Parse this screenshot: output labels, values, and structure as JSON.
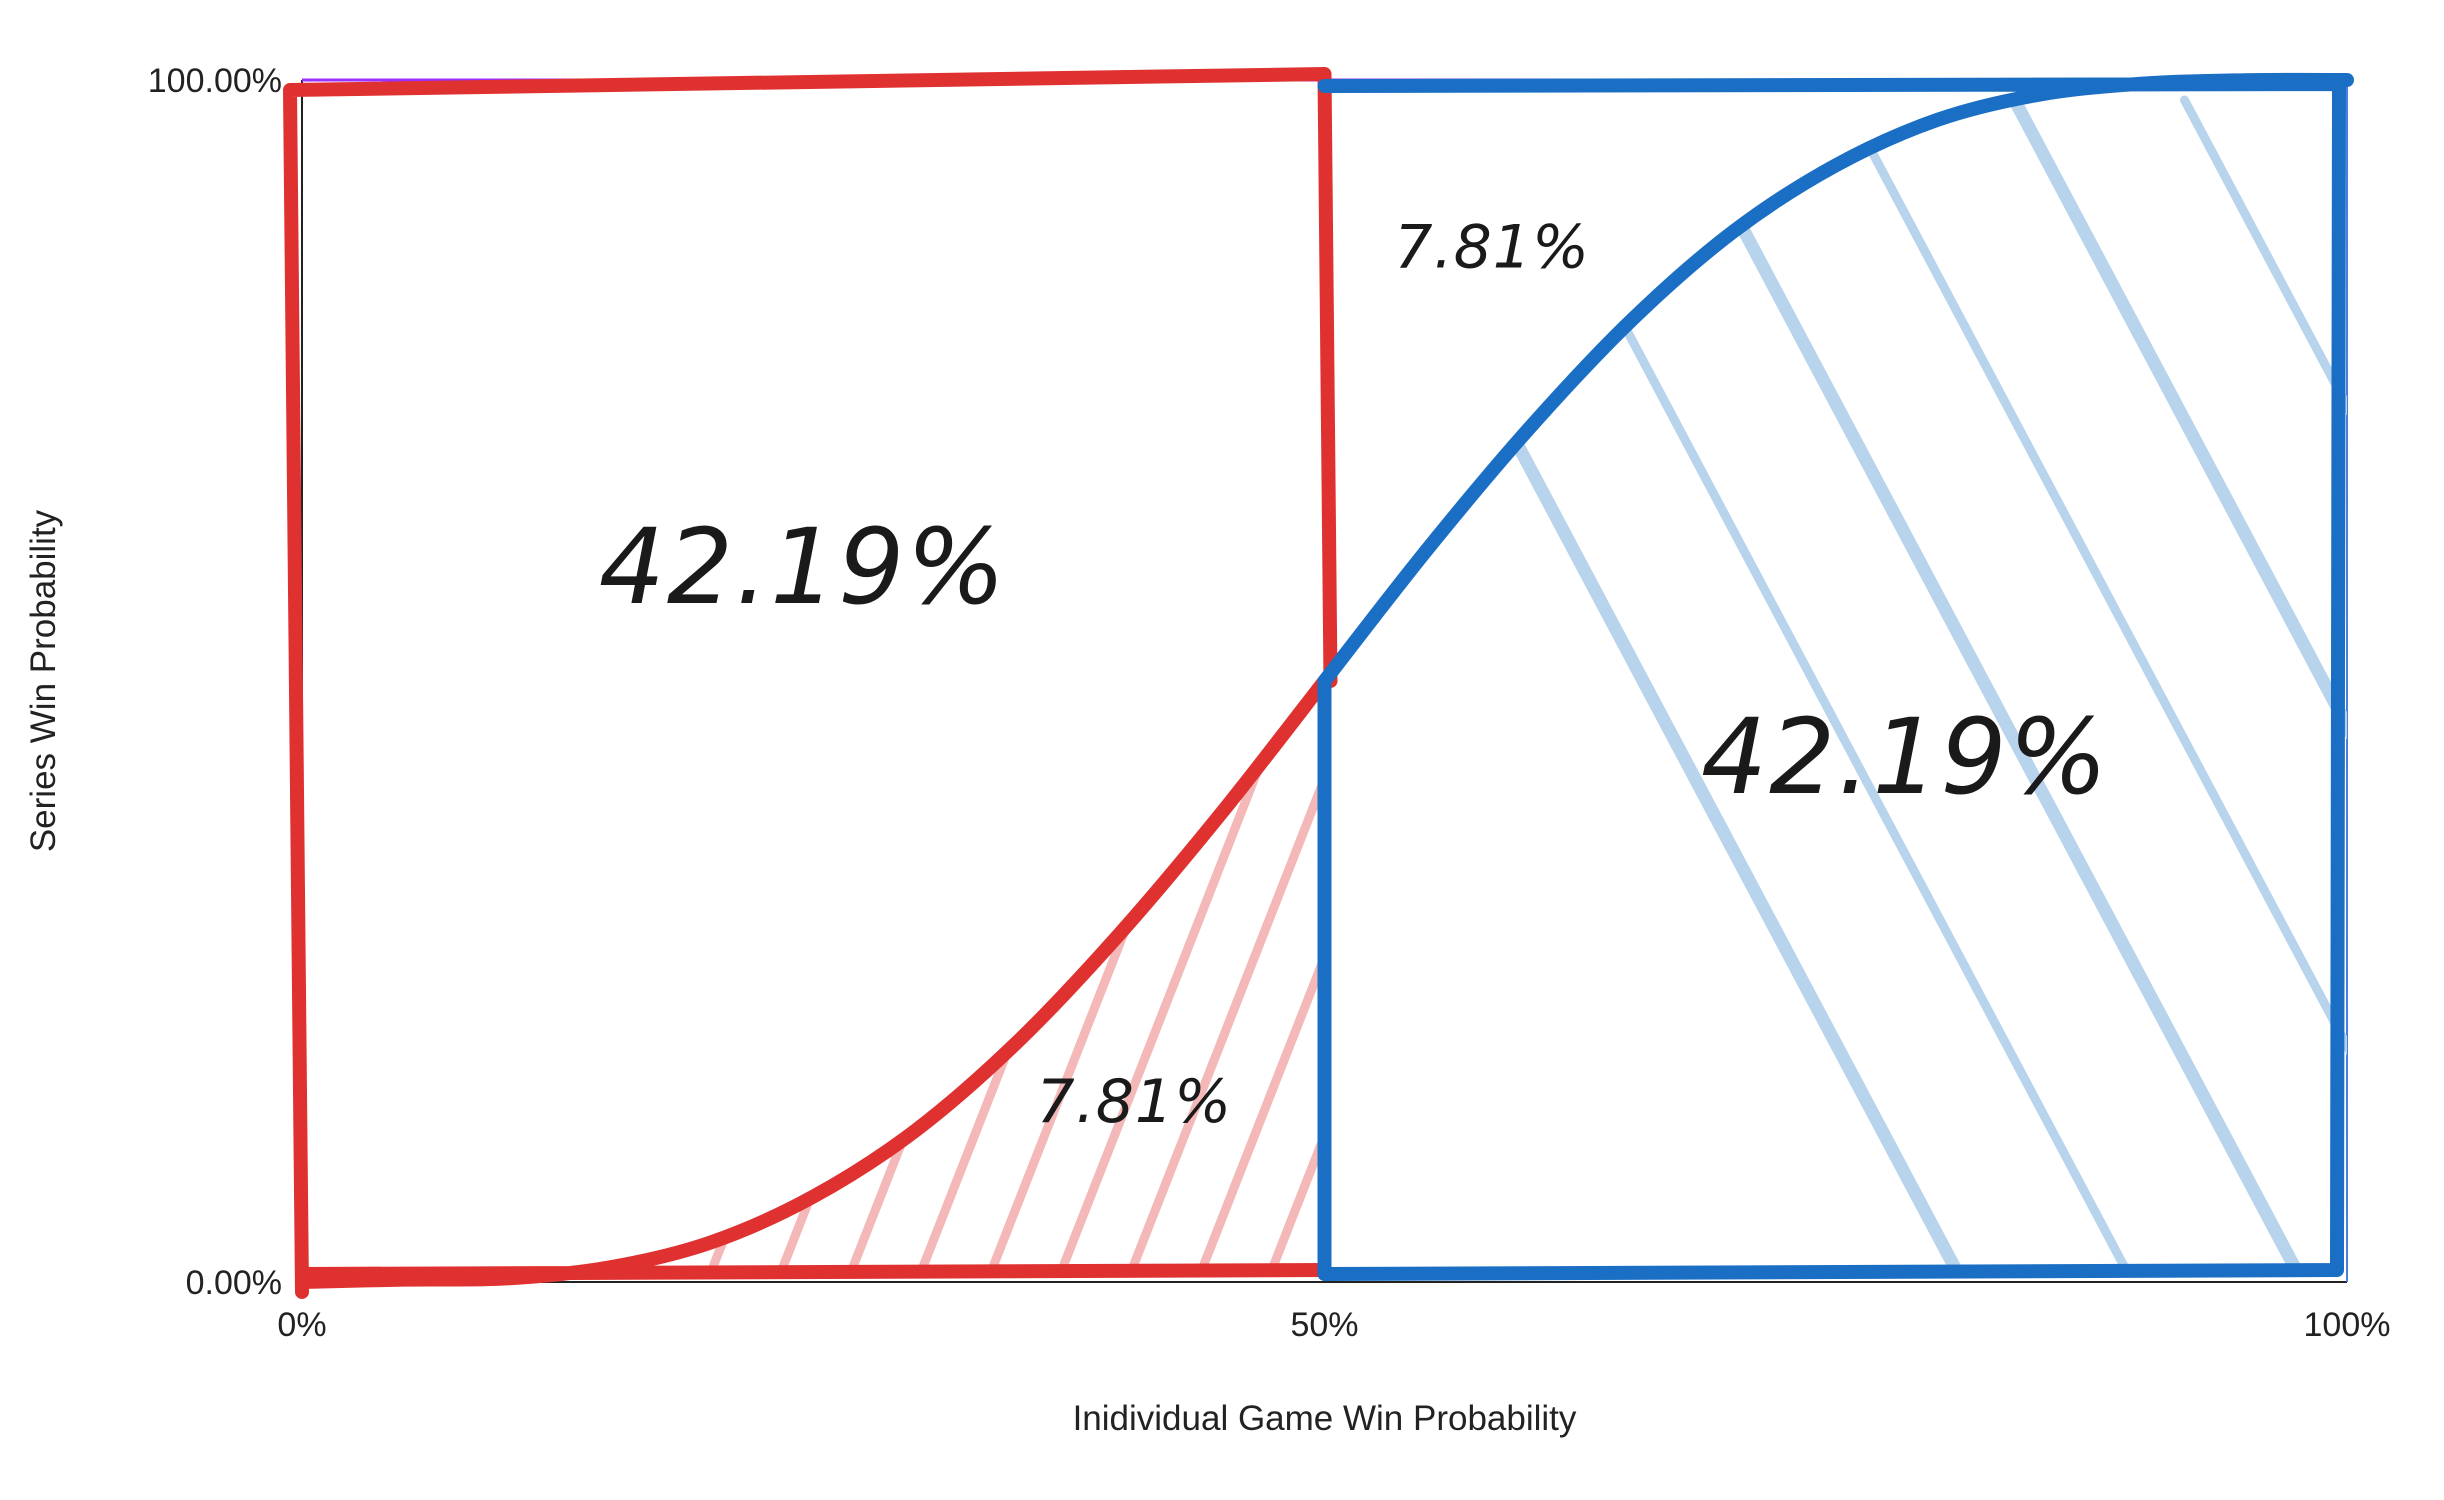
{
  "chart_data": {
    "type": "line",
    "xlabel": "Inidividual Game Win Probability",
    "ylabel": "Series Win Probability",
    "xlim": [
      0,
      100
    ],
    "ylim": [
      0,
      100
    ],
    "x_ticks": [
      "0%",
      "50%",
      "100%"
    ],
    "y_ticks": [
      "0.00%",
      "100.00%"
    ],
    "grid": false,
    "series": [
      {
        "x": [
          0,
          5,
          10,
          15,
          20,
          25,
          30,
          35,
          40,
          45,
          50,
          55,
          60,
          65,
          70,
          75,
          80,
          85,
          90,
          95,
          100
        ],
        "y": [
          0,
          0.2,
          0.3,
          1.2,
          3.3,
          7.1,
          12.6,
          20.0,
          29.0,
          39.1,
          50,
          60.9,
          71.0,
          80.0,
          87.4,
          92.9,
          96.7,
          98.8,
          99.7,
          99.98,
          100
        ],
        "color": "#4a7fe0"
      }
    ],
    "annotations": [
      {
        "text": "42.19%",
        "region": "upper-left",
        "color": "#e03131"
      },
      {
        "text": "7.81%",
        "region": "lower-left",
        "color": "#e03131"
      },
      {
        "text": "7.81%",
        "region": "upper-right",
        "color": "#1a6fc4"
      },
      {
        "text": "42.19%",
        "region": "lower-right",
        "color": "#1a6fc4"
      }
    ],
    "colors": {
      "curve": "#4a7fe0",
      "red_outline": "#e03131",
      "red_hatch": "#f4b8b8",
      "blue_outline": "#1a6fc4",
      "blue_hatch": "#b8d4ec",
      "top_line": "#9b30ff",
      "axis": "#222222"
    }
  }
}
